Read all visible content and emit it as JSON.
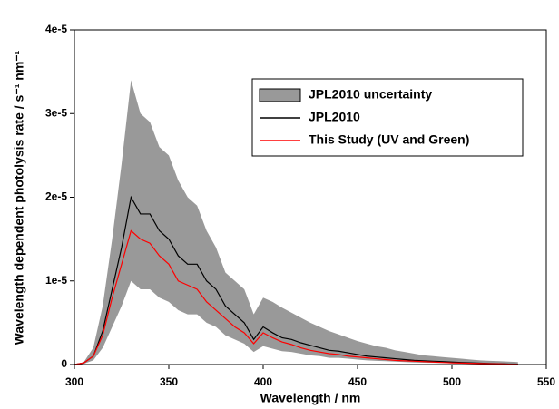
{
  "chart_data": {
    "type": "line",
    "x_label": "Wavelength / nm",
    "y_label": "Wavelength dependent photolysis rate / s⁻¹ nm⁻¹",
    "x": [
      300,
      305,
      310,
      315,
      320,
      325,
      330,
      335,
      340,
      345,
      350,
      355,
      360,
      365,
      370,
      375,
      380,
      385,
      390,
      395,
      400,
      405,
      410,
      415,
      420,
      425,
      430,
      435,
      440,
      445,
      450,
      455,
      460,
      465,
      470,
      475,
      480,
      485,
      490,
      495,
      500,
      505,
      510,
      515,
      520,
      525,
      530,
      535
    ],
    "xlim": [
      300,
      550
    ],
    "xticks": [
      300,
      350,
      400,
      450,
      500,
      550
    ],
    "ylim": [
      0,
      4e-05
    ],
    "yticks": [
      0,
      {
        "value": 1e-05,
        "label": "1e-5"
      },
      {
        "value": 2e-05,
        "label": "2e-5"
      },
      {
        "value": 3e-05,
        "label": "3e-5"
      },
      {
        "value": 4e-05,
        "label": "4e-5"
      }
    ],
    "legend": "upper-right",
    "band": {
      "name": "JPL2010 uncertainty",
      "color": "#999999",
      "upper": [
        0,
        3e-07,
        2e-06,
        7e-06,
        1.5e-05,
        2.4e-05,
        3.4e-05,
        3e-05,
        2.9e-05,
        2.6e-05,
        2.5e-05,
        2.2e-05,
        2e-05,
        1.9e-05,
        1.6e-05,
        1.4e-05,
        1.1e-05,
        1e-05,
        9e-06,
        6e-06,
        8e-06,
        7.5e-06,
        6.8e-06,
        6.2e-06,
        5.6e-06,
        5e-06,
        4.5e-06,
        4e-06,
        3.6e-06,
        3.2e-06,
        2.8e-06,
        2.5e-06,
        2.2e-06,
        2e-06,
        1.7e-06,
        1.5e-06,
        1.3e-06,
        1.1e-06,
        1e-06,
        9e-07,
        8e-07,
        7e-07,
        6e-07,
        5e-07,
        4.5e-07,
        4e-07,
        3.5e-07,
        3e-07
      ],
      "lower": [
        0,
        1e-07,
        5e-07,
        2e-06,
        4.5e-06,
        7e-06,
        1e-05,
        9e-06,
        9e-06,
        8e-06,
        7.5e-06,
        6.5e-06,
        6e-06,
        6e-06,
        5e-06,
        4.5e-06,
        3.5e-06,
        3e-06,
        2.5e-06,
        1.5e-06,
        2.2e-06,
        1.9e-06,
        1.6e-06,
        1.5e-06,
        1.3e-06,
        1.1e-06,
        1e-06,
        8e-07,
        8e-07,
        7e-07,
        6e-07,
        5e-07,
        4.5e-07,
        4e-07,
        3.5e-07,
        3e-07,
        2.5e-07,
        2.2e-07,
        2e-07,
        1.7e-07,
        1.5e-07,
        1.2e-07,
        1e-07,
        8e-08,
        6e-08,
        5e-08,
        3e-08,
        2e-08
      ]
    },
    "series": [
      {
        "name": "JPL2010",
        "color": "#000000",
        "values": [
          0,
          2e-07,
          1e-06,
          4e-06,
          9e-06,
          1.4e-05,
          2e-05,
          1.8e-05,
          1.8e-05,
          1.6e-05,
          1.5e-05,
          1.3e-05,
          1.2e-05,
          1.2e-05,
          1e-05,
          9e-06,
          7e-06,
          6e-06,
          5e-06,
          3e-06,
          4.5e-06,
          3.8e-06,
          3.2e-06,
          3e-06,
          2.6e-06,
          2.3e-06,
          2e-06,
          1.7e-06,
          1.6e-06,
          1.4e-06,
          1.2e-06,
          1e-06,
          9e-07,
          8e-07,
          7e-07,
          6e-07,
          5e-07,
          4.5e-07,
          4e-07,
          3.5e-07,
          3e-07,
          2.5e-07,
          2e-07,
          1.6e-07,
          1.2e-07,
          1e-07,
          6e-08,
          4e-08
        ]
      },
      {
        "name": "This Study (UV and Green)",
        "color": "#ff0000",
        "values": [
          0,
          2e-07,
          1e-06,
          3.5e-06,
          8e-06,
          1.2e-05,
          1.6e-05,
          1.5e-05,
          1.45e-05,
          1.3e-05,
          1.2e-05,
          1e-05,
          9.5e-06,
          9e-06,
          7.5e-06,
          6.5e-06,
          5.5e-06,
          4.5e-06,
          3.8e-06,
          2.5e-06,
          3.8e-06,
          3.2e-06,
          2.7e-06,
          2.4e-06,
          2e-06,
          1.7e-06,
          1.5e-06,
          1.3e-06,
          1.2e-06,
          1e-06,
          9e-07,
          8e-07,
          7e-07,
          6e-07,
          5e-07,
          4.5e-07,
          4e-07,
          3.5e-07,
          3e-07,
          2.5e-07,
          2e-07,
          1.8e-07,
          1.5e-07,
          1.2e-07,
          1e-07,
          8e-08,
          5e-08,
          3e-08
        ]
      }
    ]
  }
}
